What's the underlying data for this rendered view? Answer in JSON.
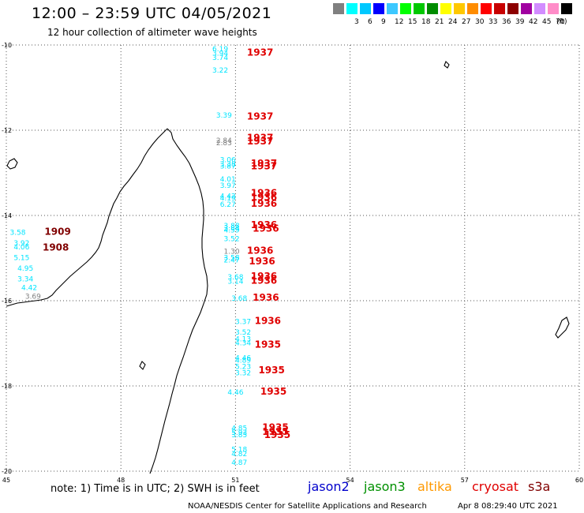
{
  "title": "12:00 – 23:59 UTC 04/05/2021",
  "subtitle": "12 hour collection of altimeter wave heights",
  "legend": {
    "unit_label": "(ft)",
    "items": [
      {
        "color": "#808080",
        "label": ""
      },
      {
        "color": "#00ffff",
        "label": "3"
      },
      {
        "color": "#00c8ff",
        "label": "6"
      },
      {
        "color": "#0000ff",
        "label": "9"
      },
      {
        "color": "#3cc8ff",
        "label": "12"
      },
      {
        "color": "#00ff00",
        "label": "15"
      },
      {
        "color": "#00c800",
        "label": "18"
      },
      {
        "color": "#008c00",
        "label": "21"
      },
      {
        "color": "#ffff00",
        "label": "24"
      },
      {
        "color": "#ffc800",
        "label": "27"
      },
      {
        "color": "#ff8c00",
        "label": "30"
      },
      {
        "color": "#ff0000",
        "label": "33"
      },
      {
        "color": "#c80000",
        "label": "36"
      },
      {
        "color": "#8c0000",
        "label": "39"
      },
      {
        "color": "#a000a0",
        "label": "42"
      },
      {
        "color": "#d28cff",
        "label": "45"
      },
      {
        "color": "#ff8cc8",
        "label": "70"
      },
      {
        "color": "#000000",
        "label": ""
      }
    ]
  },
  "axes": {
    "x_ticks": [
      45,
      48,
      51,
      54,
      57,
      60
    ],
    "y_ticks": [
      -10,
      -12,
      -14,
      -16,
      -18,
      -20
    ],
    "lon_range": [
      45,
      60
    ],
    "lat_range": [
      -20,
      -10
    ],
    "grid": true
  },
  "observations": [
    {
      "lon": 50.6,
      "lat": -10.15,
      "swh": "6.19",
      "color": "#00e5ff"
    },
    {
      "lon": 50.6,
      "lat": -10.25,
      "swh": "3.94",
      "color": "#00e5ff"
    },
    {
      "lon": 50.6,
      "lat": -10.35,
      "swh": "3.74",
      "color": "#00e5ff"
    },
    {
      "lon": 50.6,
      "lat": -10.65,
      "swh": "3.22",
      "color": "#00e5ff"
    },
    {
      "lon": 50.7,
      "lat": -11.7,
      "swh": "3.39",
      "color": "#00e5ff"
    },
    {
      "lon": 50.7,
      "lat": -12.3,
      "swh": "2.84",
      "color": "#808080"
    },
    {
      "lon": 50.7,
      "lat": -12.35,
      "swh": "2.83",
      "color": "#808080"
    },
    {
      "lon": 50.8,
      "lat": -12.75,
      "swh": "3.06",
      "color": "#00e5ff"
    },
    {
      "lon": 50.8,
      "lat": -12.85,
      "swh": "3.38",
      "color": "#00e5ff"
    },
    {
      "lon": 50.8,
      "lat": -12.9,
      "swh": "3.87",
      "color": "#00e5ff"
    },
    {
      "lon": 50.8,
      "lat": -13.2,
      "swh": "4.01",
      "color": "#00e5ff"
    },
    {
      "lon": 50.8,
      "lat": -13.35,
      "swh": "3.97",
      "color": "#00e5ff"
    },
    {
      "lon": 50.8,
      "lat": -13.6,
      "swh": "4.42",
      "color": "#00e5ff"
    },
    {
      "lon": 50.8,
      "lat": -13.65,
      "swh": "4.19",
      "color": "#00e5ff"
    },
    {
      "lon": 50.8,
      "lat": -13.8,
      "swh": "6.27",
      "color": "#00e5ff"
    },
    {
      "lon": 50.9,
      "lat": -14.3,
      "swh": "3.88",
      "color": "#00e5ff"
    },
    {
      "lon": 50.9,
      "lat": -14.35,
      "swh": "3.84",
      "color": "#00e5ff"
    },
    {
      "lon": 50.9,
      "lat": -14.4,
      "swh": "4.59",
      "color": "#00e5ff"
    },
    {
      "lon": 50.9,
      "lat": -14.6,
      "swh": "3.52",
      "color": "#00e5ff"
    },
    {
      "lon": 50.9,
      "lat": -14.9,
      "swh": "1.30",
      "color": "#808080"
    },
    {
      "lon": 50.9,
      "lat": -15.05,
      "swh": "3.58",
      "color": "#00e5ff"
    },
    {
      "lon": 50.9,
      "lat": -15.1,
      "swh": "2.47",
      "color": "#00e5ff"
    },
    {
      "lon": 51.0,
      "lat": -15.5,
      "swh": "3.68",
      "color": "#00e5ff"
    },
    {
      "lon": 51.0,
      "lat": -15.6,
      "swh": "3.14",
      "color": "#00e5ff"
    },
    {
      "lon": 51.1,
      "lat": -16.0,
      "swh": "3.68",
      "color": "#00e5ff"
    },
    {
      "lon": 51.2,
      "lat": -16.55,
      "swh": "3.37",
      "color": "#00e5ff"
    },
    {
      "lon": 51.2,
      "lat": -16.8,
      "swh": "3.52",
      "color": "#00e5ff"
    },
    {
      "lon": 51.2,
      "lat": -16.95,
      "swh": "4.13",
      "color": "#00e5ff"
    },
    {
      "lon": 51.2,
      "lat": -17.05,
      "swh": "4.34",
      "color": "#00e5ff"
    },
    {
      "lon": 51.2,
      "lat": -17.4,
      "swh": "4.46",
      "color": "#00e5ff"
    },
    {
      "lon": 51.2,
      "lat": -17.45,
      "swh": "4.89",
      "color": "#00e5ff"
    },
    {
      "lon": 51.2,
      "lat": -17.6,
      "swh": "5.23",
      "color": "#00e5ff"
    },
    {
      "lon": 51.2,
      "lat": -17.75,
      "swh": "3.32",
      "color": "#00e5ff"
    },
    {
      "lon": 51.0,
      "lat": -18.2,
      "swh": "4.46",
      "color": "#00e5ff"
    },
    {
      "lon": 51.1,
      "lat": -19.05,
      "swh": "4.85",
      "color": "#00e5ff"
    },
    {
      "lon": 51.1,
      "lat": -19.15,
      "swh": "5.93",
      "color": "#00e5ff"
    },
    {
      "lon": 51.1,
      "lat": -19.2,
      "swh": "3.85",
      "color": "#00e5ff"
    },
    {
      "lon": 51.1,
      "lat": -19.55,
      "swh": "5.18",
      "color": "#00e5ff"
    },
    {
      "lon": 51.1,
      "lat": -19.65,
      "swh": "4.82",
      "color": "#00e5ff"
    },
    {
      "lon": 51.1,
      "lat": -19.85,
      "swh": "4.87",
      "color": "#00e5ff"
    },
    {
      "lon": 45.3,
      "lat": -14.45,
      "swh": "3.58",
      "color": "#00e5ff"
    },
    {
      "lon": 45.4,
      "lat": -14.7,
      "swh": "3.92",
      "color": "#00e5ff"
    },
    {
      "lon": 45.4,
      "lat": -14.8,
      "swh": "4.06",
      "color": "#00e5ff"
    },
    {
      "lon": 45.4,
      "lat": -15.05,
      "swh": "5.15",
      "color": "#00e5ff"
    },
    {
      "lon": 45.5,
      "lat": -15.3,
      "swh": "4.95",
      "color": "#00e5ff"
    },
    {
      "lon": 45.5,
      "lat": -15.55,
      "swh": "3.34",
      "color": "#00e5ff"
    },
    {
      "lon": 45.6,
      "lat": -15.75,
      "swh": "4.42",
      "color": "#00e5ff"
    },
    {
      "lon": 45.7,
      "lat": -15.95,
      "swh": "3.69",
      "color": "#808080"
    }
  ],
  "time_labels": [
    {
      "lon": 51.3,
      "lat": -10.25,
      "text": "1937",
      "color": "#e00000"
    },
    {
      "lon": 51.3,
      "lat": -11.75,
      "text": "1937",
      "color": "#e00000"
    },
    {
      "lon": 51.3,
      "lat": -12.25,
      "text": "1937",
      "color": "#e00000"
    },
    {
      "lon": 51.3,
      "lat": -12.33,
      "text": "1937",
      "color": "#e00000"
    },
    {
      "lon": 51.4,
      "lat": -12.85,
      "text": "1937",
      "color": "#e00000"
    },
    {
      "lon": 51.4,
      "lat": -12.92,
      "text": "1937",
      "color": "#e00000"
    },
    {
      "lon": 51.4,
      "lat": -13.55,
      "text": "1936",
      "color": "#e00000"
    },
    {
      "lon": 51.4,
      "lat": -13.65,
      "text": "1936",
      "color": "#e00000"
    },
    {
      "lon": 51.4,
      "lat": -13.8,
      "text": "1936",
      "color": "#e00000"
    },
    {
      "lon": 51.4,
      "lat": -14.3,
      "text": "1936",
      "color": "#e00000"
    },
    {
      "lon": 51.45,
      "lat": -14.38,
      "text": "1936",
      "color": "#e00000"
    },
    {
      "lon": 51.3,
      "lat": -14.9,
      "text": "1936",
      "color": "#e00000"
    },
    {
      "lon": 51.35,
      "lat": -15.15,
      "text": "1936",
      "color": "#e00000"
    },
    {
      "lon": 51.4,
      "lat": -15.5,
      "text": "1936",
      "color": "#e00000"
    },
    {
      "lon": 51.4,
      "lat": -15.6,
      "text": "1936",
      "color": "#e00000"
    },
    {
      "lon": 51.45,
      "lat": -16.0,
      "text": "1936",
      "color": "#e00000"
    },
    {
      "lon": 51.5,
      "lat": -16.55,
      "text": "1936",
      "color": "#e00000"
    },
    {
      "lon": 51.5,
      "lat": -17.1,
      "text": "1935",
      "color": "#e00000"
    },
    {
      "lon": 51.6,
      "lat": -17.7,
      "text": "1935",
      "color": "#e00000"
    },
    {
      "lon": 51.65,
      "lat": -18.2,
      "text": "1935",
      "color": "#e00000"
    },
    {
      "lon": 51.7,
      "lat": -19.05,
      "text": "1935",
      "color": "#e00000"
    },
    {
      "lon": 51.7,
      "lat": -19.15,
      "text": "1935",
      "color": "#e00000"
    },
    {
      "lon": 51.75,
      "lat": -19.22,
      "text": "1935",
      "color": "#e00000"
    },
    {
      "lon": 46.0,
      "lat": -14.45,
      "text": "1909",
      "color": "#800000"
    },
    {
      "lon": 45.95,
      "lat": -14.82,
      "text": "1908",
      "color": "#800000"
    }
  ],
  "note": "note:  1) Time is in UTC; 2) SWH is in feet",
  "satellites": [
    {
      "name": "jason2",
      "color": "#0000cc"
    },
    {
      "name": "jason3",
      "color": "#009000"
    },
    {
      "name": "altika",
      "color": "#ff9900"
    },
    {
      "name": "cryosat",
      "color": "#e00000"
    },
    {
      "name": "s3a",
      "color": "#800000"
    }
  ],
  "credit": "NOAA/NESDIS Center for Satellite Applications and Research",
  "timestamp": "Apr  8 08:29:40 UTC 2021"
}
